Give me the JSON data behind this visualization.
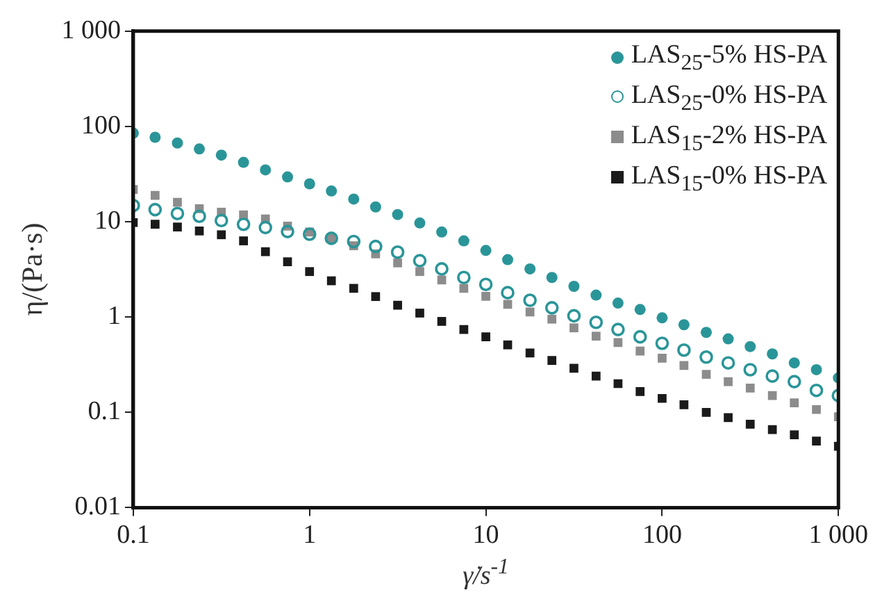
{
  "chart_data": {
    "type": "scatter",
    "xlabel": "γ̇/s$^{-1}$",
    "ylabel": "η/(Pa·s)",
    "log": "xy",
    "xlim": [
      0.1,
      1000
    ],
    "ylim": [
      0.01,
      1000
    ],
    "xticks": [
      0.1,
      1,
      10,
      100,
      {
        "value": 1000,
        "label": "1 000"
      }
    ],
    "yticks": [
      0.01,
      0.1,
      1,
      10,
      100,
      {
        "value": 1000,
        "label": "1 000"
      }
    ],
    "grid": false,
    "legend": "top right",
    "marker": "circle",
    "x": [
      0.1,
      0.133,
      0.178,
      0.237,
      0.316,
      0.422,
      0.562,
      0.75,
      1,
      1.33,
      1.78,
      2.37,
      3.16,
      4.22,
      5.62,
      7.5,
      10,
      13.3,
      17.8,
      23.7,
      31.6,
      42.2,
      56.2,
      75,
      100,
      133,
      178,
      237,
      316,
      422,
      562,
      750,
      1000
    ],
    "series": [
      {
        "name": "LAS$_{25}$-5% HS-PA",
        "color": "#2a9598",
        "values": [
          85,
          77,
          67,
          58,
          50,
          42,
          35,
          29.5,
          25,
          21,
          17.3,
          14.3,
          11.9,
          9.7,
          7.8,
          6.3,
          5.0,
          4.0,
          3.2,
          2.6,
          2.1,
          1.7,
          1.4,
          1.2,
          0.98,
          0.83,
          0.69,
          0.59,
          0.49,
          0.41,
          0.33,
          0.28,
          0.23
        ]
      },
      {
        "name": "LAS$_{25}$-0% HS-PA",
        "color": "#2a9598",
        "values": [
          14.8,
          13.4,
          12.2,
          11.4,
          10.3,
          9.4,
          8.7,
          7.9,
          7.4,
          6.7,
          6.2,
          5.5,
          4.8,
          3.9,
          3.2,
          2.6,
          2.2,
          1.8,
          1.5,
          1.25,
          1.03,
          0.88,
          0.74,
          0.62,
          0.53,
          0.45,
          0.38,
          0.33,
          0.28,
          0.24,
          0.21,
          0.17,
          0.15
        ]
      },
      {
        "name": "LAS$_{15}$-2% HS-PA",
        "color": "#8c8c8c",
        "marker": "square",
        "values": [
          21.8,
          18.9,
          16,
          13.7,
          12.6,
          11.8,
          10.7,
          9.0,
          7.8,
          6.7,
          5.6,
          4.6,
          3.7,
          3.0,
          2.45,
          2.0,
          1.65,
          1.36,
          1.13,
          0.95,
          0.77,
          0.63,
          0.54,
          0.44,
          0.37,
          0.31,
          0.25,
          0.21,
          0.18,
          0.15,
          0.126,
          0.107,
          0.09
        ]
      },
      {
        "name": "LAS$_{15}$-0% HS-PA",
        "color": "#1a1a1a",
        "marker": "square",
        "values": [
          9.8,
          9.4,
          8.8,
          8.0,
          7.3,
          6.3,
          4.85,
          3.8,
          3.0,
          2.4,
          2.0,
          1.64,
          1.33,
          1.1,
          0.9,
          0.74,
          0.62,
          0.51,
          0.42,
          0.35,
          0.29,
          0.24,
          0.2,
          0.165,
          0.14,
          0.12,
          0.1,
          0.088,
          0.075,
          0.066,
          0.058,
          0.05,
          0.044
        ]
      }
    ]
  }
}
